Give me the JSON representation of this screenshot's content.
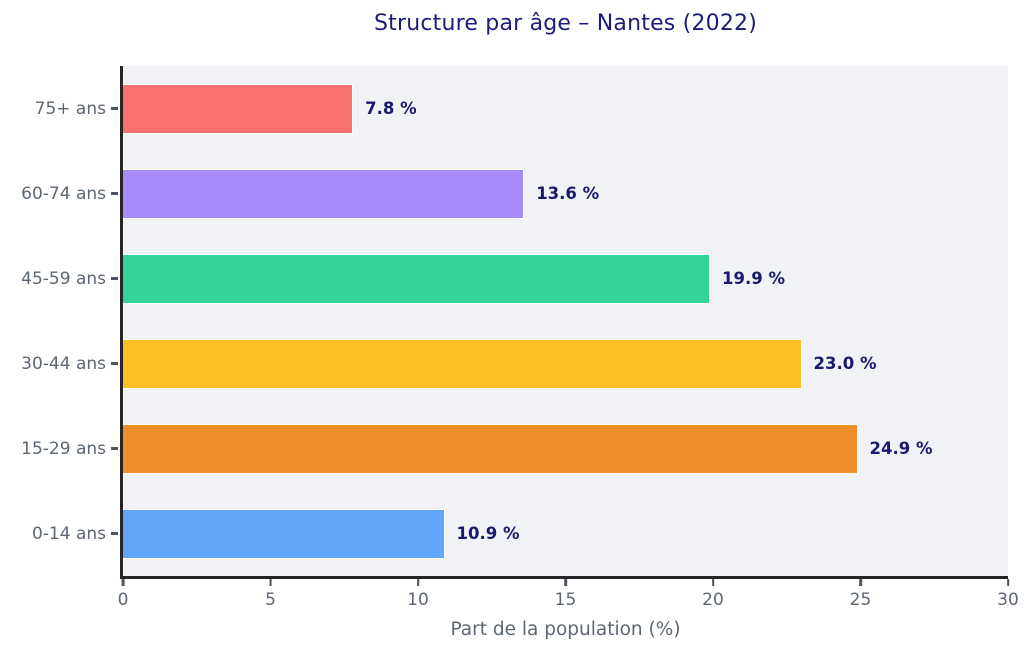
{
  "chart_data": {
    "type": "bar",
    "orientation": "horizontal",
    "title": "Structure par âge – Nantes (2022)",
    "xlabel": "Part de la population (%)",
    "categories_top_to_bottom": [
      "75+ ans",
      "60-74 ans",
      "45-59 ans",
      "30-44 ans",
      "15-29 ans",
      "0-14 ans"
    ],
    "values": [
      7.8,
      13.6,
      19.9,
      23.0,
      24.9,
      10.9
    ],
    "value_labels": [
      "7.8 %",
      "13.6 %",
      "19.9 %",
      "23.0 %",
      "24.9 %",
      "10.9 %"
    ],
    "colors": [
      "#f87171",
      "#a78bfa",
      "#34d399",
      "#fbbf24",
      "#ef8d2b",
      "#60a5fa"
    ],
    "xlim": [
      0,
      30
    ],
    "x_ticks": [
      0,
      5,
      10,
      15,
      20,
      25,
      30
    ],
    "grid": false,
    "legend": "none",
    "plot_background": "#f1f2f5",
    "figure_background": "#ffffff",
    "bar_edge_color": "#ffffff",
    "title_color": "#1c1c7a",
    "value_label_color": "#191970",
    "tick_text_color": "#5d6774",
    "axis_spine_color": "#262626"
  }
}
